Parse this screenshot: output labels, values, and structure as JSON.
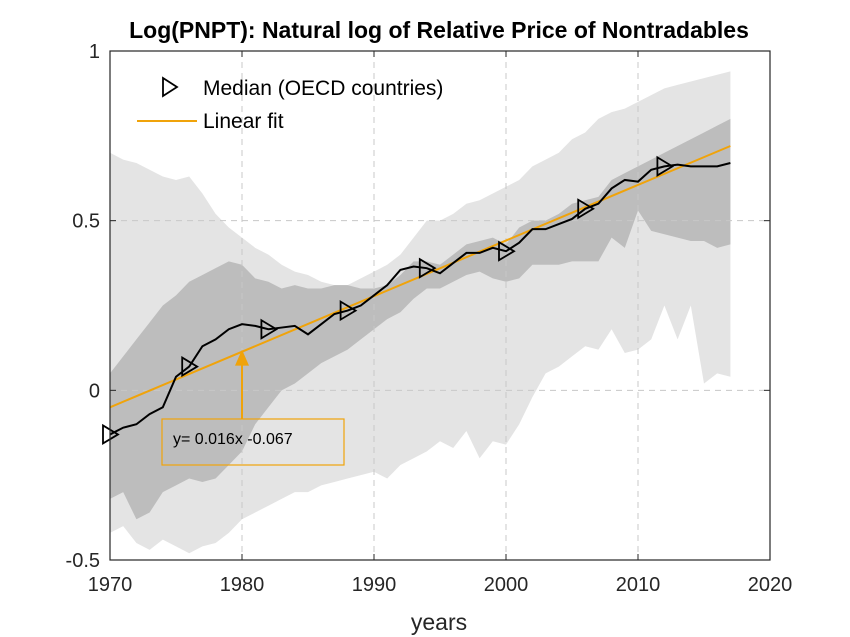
{
  "chart_data": {
    "type": "area",
    "title": "Log(PNPT): Natural log of Relative Price of Nontradables",
    "xlabel": "years",
    "ylabel": "",
    "xlim": [
      1970,
      2020
    ],
    "ylim": [
      -0.5,
      1
    ],
    "xticks": [
      1970,
      1980,
      1990,
      2000,
      2010,
      2020
    ],
    "yticks": [
      -0.5,
      0,
      0.5,
      1
    ],
    "xtick_labels": [
      "1970",
      "1980",
      "1990",
      "2000",
      "2010",
      "2020"
    ],
    "ytick_labels": [
      "-0.5",
      "0",
      "0.5",
      "1"
    ],
    "grid": true,
    "legend_position": "top-left",
    "colors": {
      "outer_band": "#e4e4e4",
      "inner_band": "#bdbdbd",
      "median": "#000000",
      "fit": "#f0a30a",
      "annotation_border": "#f0a30a"
    },
    "series": [
      {
        "name": "Median (OECD countries)",
        "marker": "triangle-right",
        "marker_years": [
          1970,
          1976,
          1982,
          1988,
          1994,
          2000,
          2006,
          2012
        ],
        "x": [
          1970,
          1971,
          1972,
          1973,
          1974,
          1975,
          1976,
          1977,
          1978,
          1979,
          1980,
          1981,
          1982,
          1983,
          1984,
          1985,
          1986,
          1987,
          1988,
          1989,
          1990,
          1991,
          1992,
          1993,
          1994,
          1995,
          1996,
          1997,
          1998,
          1999,
          2000,
          2001,
          2002,
          2003,
          2004,
          2005,
          2006,
          2007,
          2008,
          2009,
          2010,
          2011,
          2012,
          2013,
          2014,
          2015,
          2016,
          2017
        ],
        "values": [
          -0.13,
          -0.11,
          -0.1,
          -0.07,
          -0.05,
          0.04,
          0.07,
          0.13,
          0.15,
          0.18,
          0.195,
          0.19,
          0.18,
          0.185,
          0.19,
          0.165,
          0.195,
          0.225,
          0.235,
          0.25,
          0.28,
          0.31,
          0.355,
          0.365,
          0.36,
          0.345,
          0.375,
          0.405,
          0.405,
          0.42,
          0.41,
          0.435,
          0.475,
          0.475,
          0.49,
          0.505,
          0.535,
          0.55,
          0.595,
          0.62,
          0.615,
          0.65,
          0.66,
          0.665,
          0.66,
          0.66,
          0.66,
          0.67
        ]
      },
      {
        "name": "Linear fit",
        "x": [
          1970,
          2017
        ],
        "values": [
          -0.05,
          0.72
        ]
      }
    ],
    "bands": {
      "x": [
        1970,
        1971,
        1972,
        1973,
        1974,
        1975,
        1976,
        1977,
        1978,
        1979,
        1980,
        1981,
        1982,
        1983,
        1984,
        1985,
        1986,
        1987,
        1988,
        1989,
        1990,
        1991,
        1992,
        1993,
        1994,
        1995,
        1996,
        1997,
        1998,
        1999,
        2000,
        2001,
        2002,
        2003,
        2004,
        2005,
        2006,
        2007,
        2008,
        2009,
        2010,
        2011,
        2012,
        2013,
        2014,
        2015,
        2016,
        2017
      ],
      "outer_upper": [
        0.7,
        0.68,
        0.67,
        0.65,
        0.63,
        0.62,
        0.63,
        0.58,
        0.52,
        0.48,
        0.45,
        0.42,
        0.4,
        0.37,
        0.35,
        0.34,
        0.32,
        0.31,
        0.31,
        0.33,
        0.35,
        0.37,
        0.4,
        0.45,
        0.5,
        0.5,
        0.52,
        0.55,
        0.56,
        0.58,
        0.6,
        0.62,
        0.66,
        0.68,
        0.7,
        0.74,
        0.76,
        0.8,
        0.82,
        0.83,
        0.85,
        0.87,
        0.89,
        0.9,
        0.91,
        0.92,
        0.93,
        0.94
      ],
      "inner_upper": [
        0.05,
        0.1,
        0.15,
        0.2,
        0.25,
        0.28,
        0.32,
        0.34,
        0.36,
        0.38,
        0.37,
        0.33,
        0.32,
        0.3,
        0.31,
        0.3,
        0.3,
        0.31,
        0.31,
        0.3,
        0.3,
        0.31,
        0.34,
        0.38,
        0.38,
        0.37,
        0.4,
        0.43,
        0.44,
        0.45,
        0.43,
        0.48,
        0.5,
        0.5,
        0.52,
        0.55,
        0.56,
        0.57,
        0.62,
        0.64,
        0.66,
        0.68,
        0.7,
        0.72,
        0.74,
        0.76,
        0.78,
        0.8
      ],
      "inner_lower": [
        -0.32,
        -0.3,
        -0.38,
        -0.36,
        -0.3,
        -0.28,
        -0.26,
        -0.27,
        -0.26,
        -0.22,
        -0.18,
        -0.1,
        -0.05,
        0.0,
        0.02,
        0.05,
        0.08,
        0.1,
        0.12,
        0.15,
        0.18,
        0.21,
        0.23,
        0.27,
        0.3,
        0.3,
        0.32,
        0.34,
        0.35,
        0.33,
        0.32,
        0.33,
        0.37,
        0.37,
        0.37,
        0.38,
        0.38,
        0.38,
        0.45,
        0.42,
        0.53,
        0.47,
        0.46,
        0.45,
        0.44,
        0.44,
        0.42,
        0.43
      ],
      "outer_lower": [
        -0.42,
        -0.4,
        -0.45,
        -0.47,
        -0.44,
        -0.46,
        -0.48,
        -0.46,
        -0.45,
        -0.42,
        -0.38,
        -0.36,
        -0.34,
        -0.32,
        -0.3,
        -0.3,
        -0.28,
        -0.27,
        -0.26,
        -0.25,
        -0.24,
        -0.26,
        -0.22,
        -0.2,
        -0.18,
        -0.15,
        -0.17,
        -0.12,
        -0.2,
        -0.15,
        -0.16,
        -0.1,
        -0.02,
        0.05,
        0.07,
        0.1,
        0.13,
        0.12,
        0.18,
        0.11,
        0.12,
        0.15,
        0.25,
        0.15,
        0.25,
        0.02,
        0.05,
        0.04
      ]
    },
    "annotation": {
      "text": "y= 0.016x -0.067",
      "arrow_to": {
        "x": 1980,
        "y": 0.12
      }
    }
  }
}
